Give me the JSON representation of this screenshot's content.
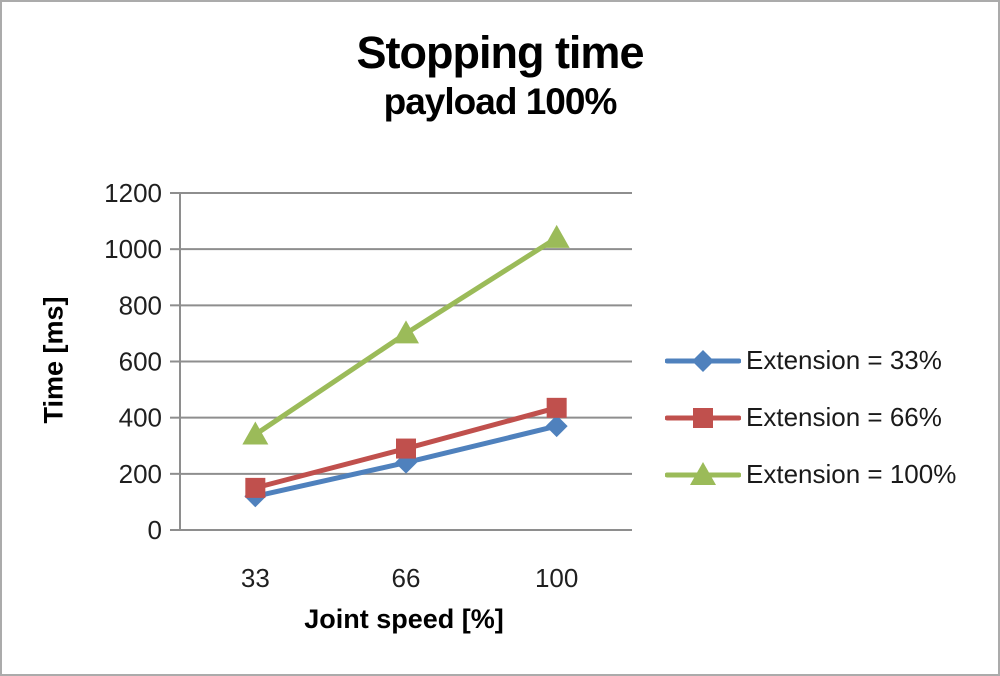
{
  "chart_data": {
    "type": "line",
    "title": "Stopping time",
    "subtitle": "payload 100%",
    "xlabel": "Joint speed [%]",
    "ylabel": "Time [ms]",
    "categories": [
      "33",
      "66",
      "100"
    ],
    "series": [
      {
        "name": "Extension = 33%",
        "marker": "diamond",
        "color": "#4F81BD",
        "values": [
          120,
          240,
          370
        ]
      },
      {
        "name": "Extension = 66%",
        "marker": "square",
        "color": "#C0504D",
        "values": [
          150,
          290,
          435
        ]
      },
      {
        "name": "Extension = 100%",
        "marker": "triangle",
        "color": "#9BBB59",
        "values": [
          340,
          700,
          1040
        ]
      }
    ],
    "ylim": [
      0,
      1200
    ],
    "yticks": [
      0,
      200,
      400,
      600,
      800,
      1000,
      1200
    ],
    "grid": true,
    "legend_position": "right",
    "axis_color": "#8e8e8e",
    "grid_color": "#8e8e8e"
  }
}
